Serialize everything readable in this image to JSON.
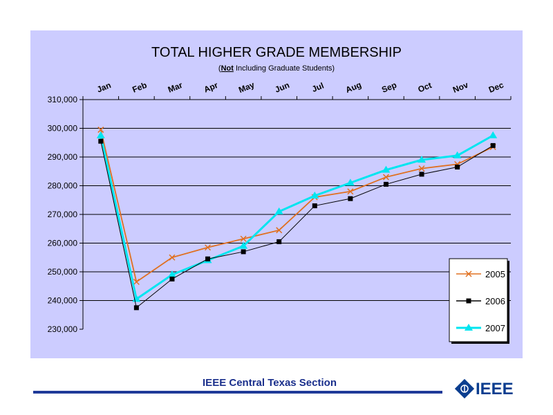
{
  "chart_data": {
    "type": "line",
    "title": "TOTAL HIGHER GRADE MEMBERSHIP",
    "subtitle_not": "Not",
    "subtitle_rest": " Including Graduate Students)",
    "subtitle_open": "(",
    "categories": [
      "Jan",
      "Feb",
      "Mar",
      "Apr",
      "May",
      "Jun",
      "Jul",
      "Aug",
      "Sep",
      "Oct",
      "Nov",
      "Dec"
    ],
    "y_ticks": [
      "310,000",
      "300,000",
      "290,000",
      "280,000",
      "270,000",
      "260,000",
      "250,000",
      "240,000",
      "230,000"
    ],
    "y_tick_values": [
      310000,
      300000,
      290000,
      280000,
      270000,
      260000,
      250000,
      240000,
      230000
    ],
    "ylim": [
      230000,
      310000
    ],
    "grid": true,
    "legend_position": "bottom-right",
    "series": [
      {
        "name": "2005",
        "color": "#e07020",
        "marker": "x",
        "values": [
          299500,
          246500,
          255000,
          258500,
          261500,
          264500,
          276000,
          278000,
          283000,
          286000,
          287500,
          293500
        ]
      },
      {
        "name": "2006",
        "color": "#000000",
        "marker": "square",
        "values": [
          295500,
          237500,
          247500,
          254500,
          257000,
          260500,
          273000,
          275500,
          280500,
          284000,
          286500,
          294000
        ]
      },
      {
        "name": "2007",
        "color": "#00e5f0",
        "marker": "triangle",
        "values": [
          297500,
          240500,
          249000,
          254000,
          259000,
          271000,
          276500,
          281000,
          285500,
          289000,
          290500,
          297500
        ]
      }
    ]
  },
  "footer": {
    "text": "IEEE Central Texas Section",
    "logo_text": "IEEE"
  }
}
